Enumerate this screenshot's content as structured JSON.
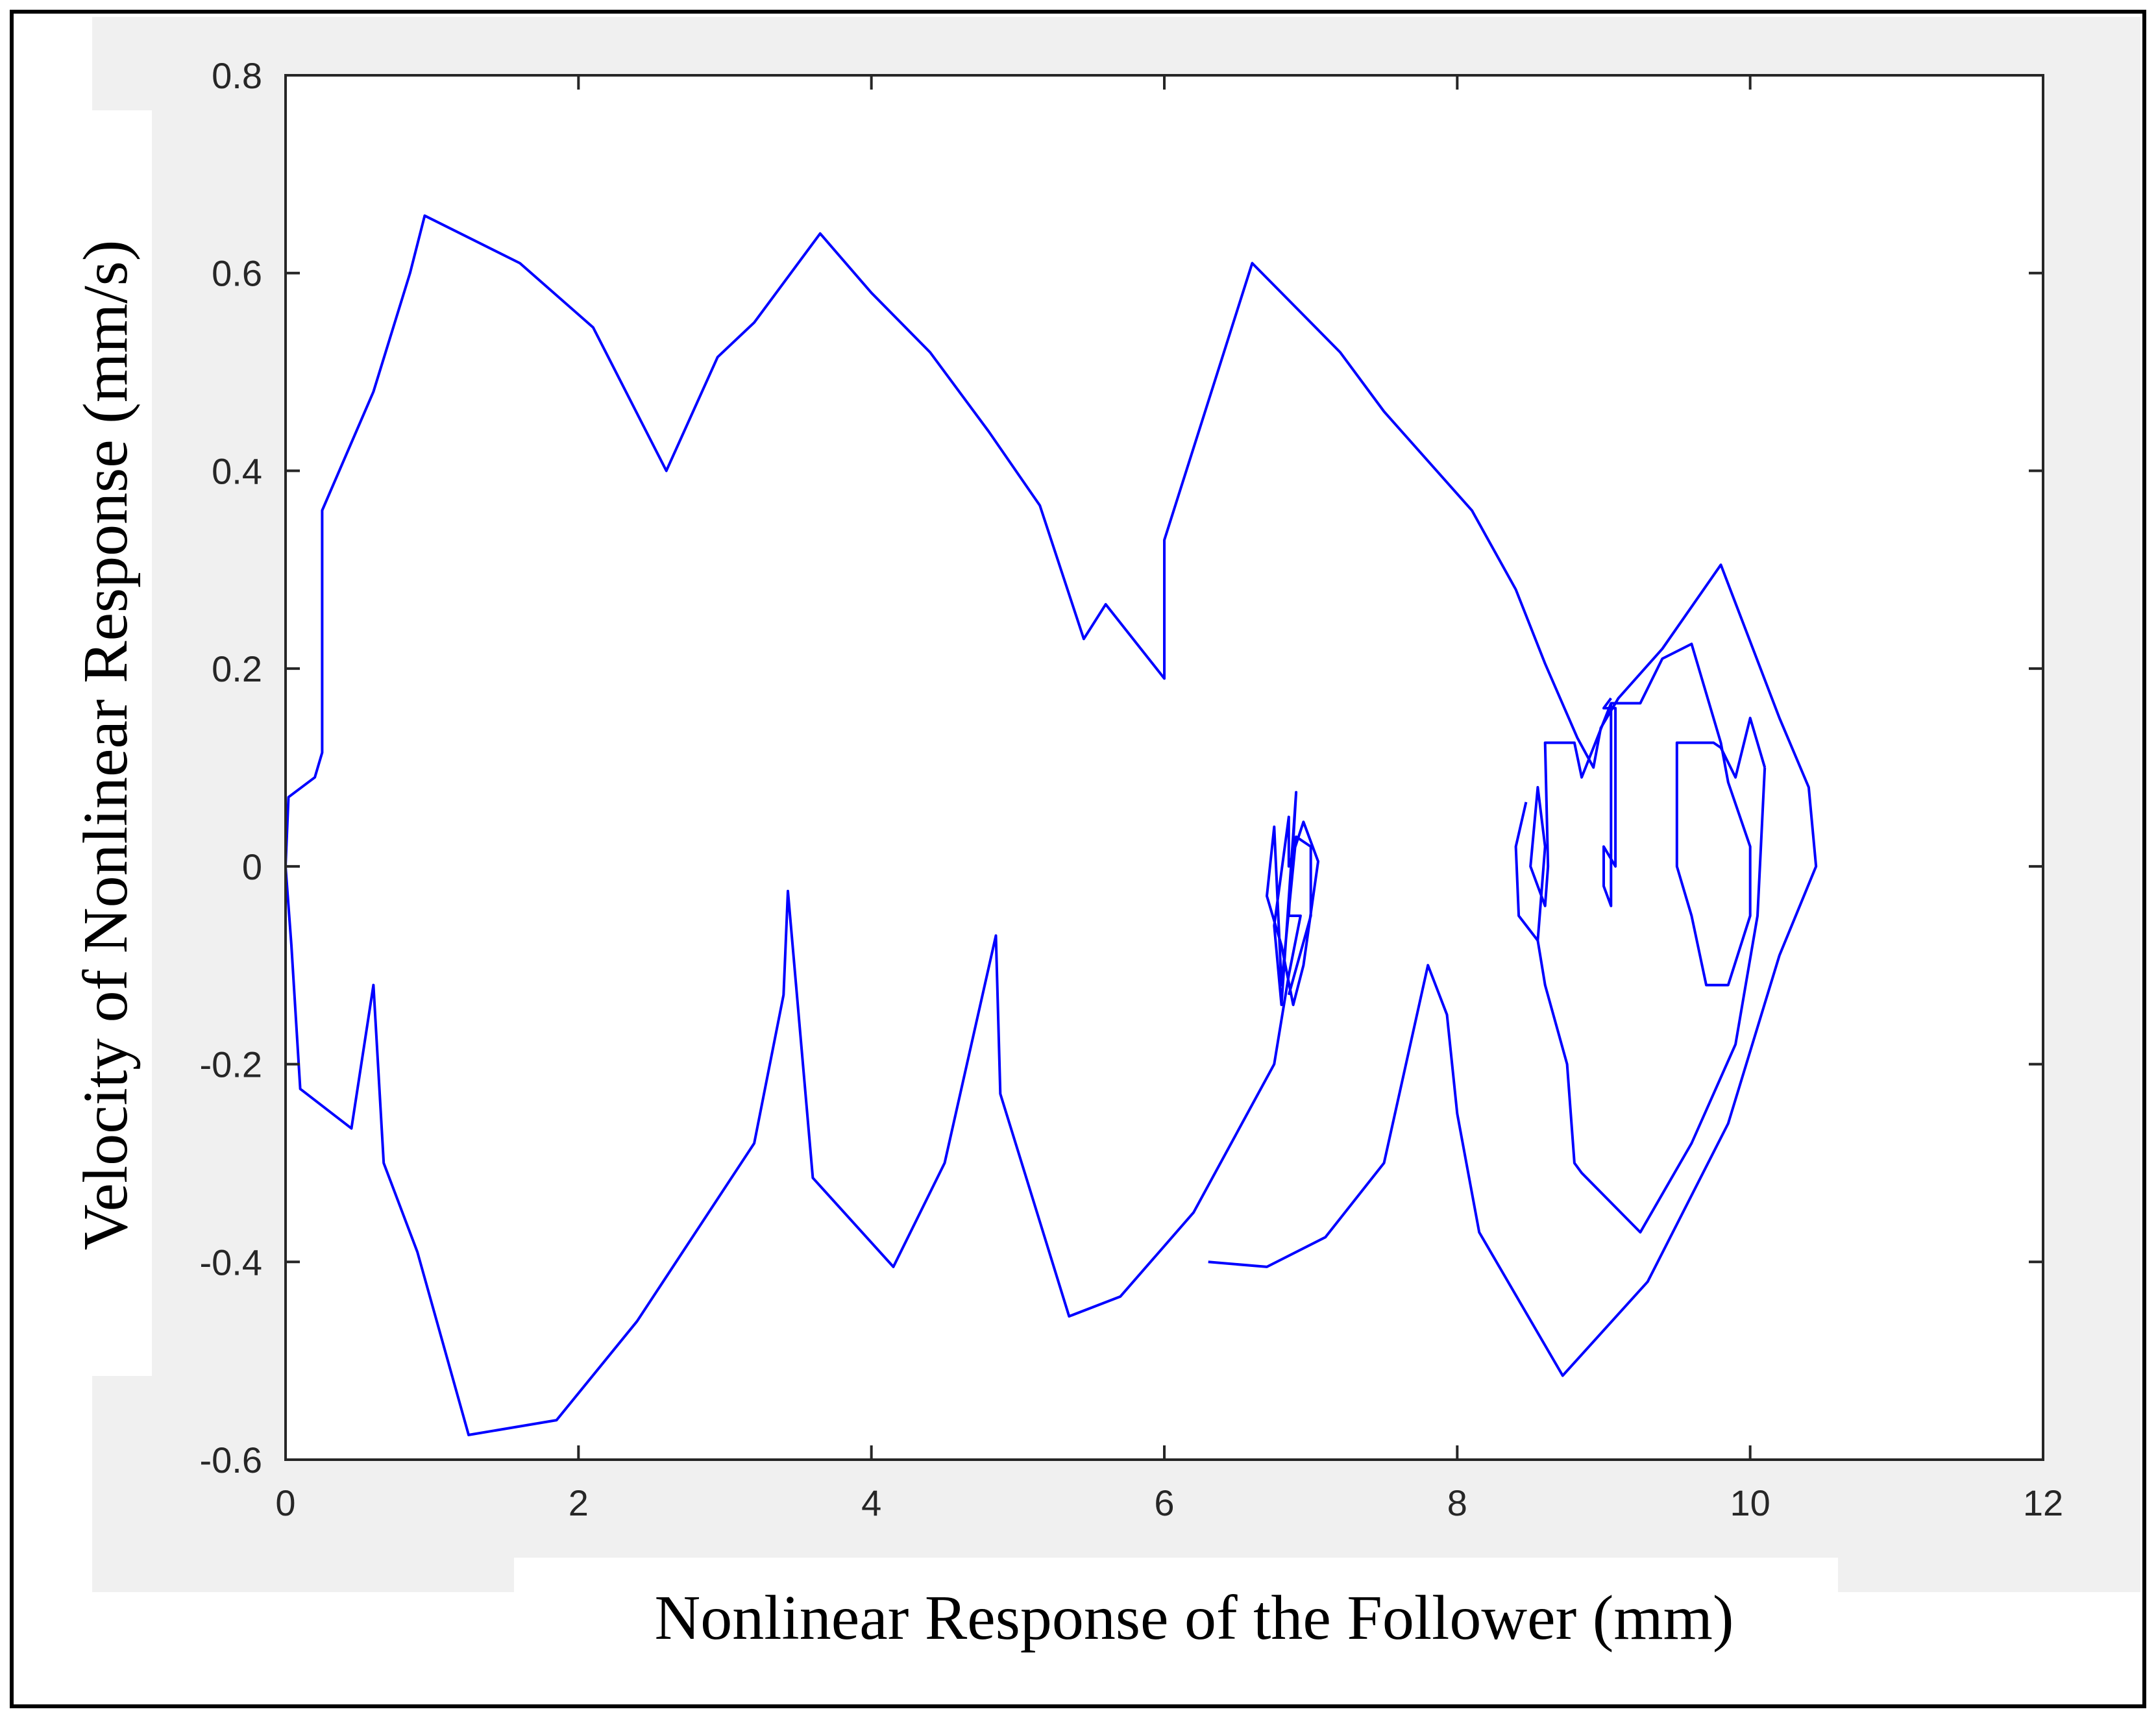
{
  "chart_data": {
    "type": "line",
    "title": "",
    "xlabel": "Nonlinear Response of the Follower (mm)",
    "ylabel": "Velocity of Nonlinear Response (mm/s)",
    "xlim": [
      0,
      12
    ],
    "ylim": [
      -0.6,
      0.8
    ],
    "x_ticks": [
      0,
      2,
      4,
      6,
      8,
      10,
      12
    ],
    "y_ticks": [
      -0.6,
      -0.4,
      -0.2,
      0,
      0.2,
      0.4,
      0.6,
      0.8
    ],
    "x_tick_labels": [
      "0",
      "2",
      "4",
      "6",
      "8",
      "10",
      "12"
    ],
    "y_tick_labels": [
      "-0.6",
      "-0.4",
      "-0.2",
      "0",
      "0.2",
      "0.4",
      "0.6",
      "0.8"
    ],
    "grid": false,
    "legend": "none",
    "series": [
      {
        "color": "#0000ff",
        "points": [
          [
            6.3,
            -0.4
          ],
          [
            6.7,
            -0.405
          ],
          [
            7.1,
            -0.375
          ],
          [
            7.5,
            -0.3
          ],
          [
            7.8,
            -0.1
          ],
          [
            7.93,
            -0.15
          ],
          [
            8.0,
            -0.25
          ],
          [
            8.15,
            -0.37
          ],
          [
            8.72,
            -0.515
          ],
          [
            9.3,
            -0.42
          ],
          [
            9.85,
            -0.26
          ],
          [
            10.2,
            -0.09
          ],
          [
            10.45,
            0.0
          ],
          [
            10.4,
            0.08
          ],
          [
            10.2,
            0.15
          ],
          [
            9.8,
            0.305
          ],
          [
            9.4,
            0.22
          ],
          [
            9.1,
            0.17
          ],
          [
            8.98,
            0.14
          ],
          [
            8.93,
            0.1
          ],
          [
            8.82,
            0.13
          ],
          [
            8.6,
            0.205
          ],
          [
            8.4,
            0.28
          ],
          [
            8.1,
            0.36
          ],
          [
            7.5,
            0.46
          ],
          [
            7.2,
            0.52
          ],
          [
            6.6,
            0.61
          ],
          [
            6.0,
            0.33
          ],
          [
            6.0,
            0.19
          ],
          [
            5.6,
            0.265
          ],
          [
            5.45,
            0.23
          ],
          [
            5.15,
            0.365
          ],
          [
            4.8,
            0.44
          ],
          [
            4.4,
            0.52
          ],
          [
            4.0,
            0.58
          ],
          [
            3.65,
            0.64
          ],
          [
            3.2,
            0.55
          ],
          [
            2.95,
            0.515
          ],
          [
            2.6,
            0.4
          ],
          [
            2.1,
            0.545
          ],
          [
            1.6,
            0.61
          ],
          [
            0.95,
            0.658
          ],
          [
            0.85,
            0.6
          ],
          [
            0.6,
            0.48
          ],
          [
            0.25,
            0.36
          ],
          [
            0.25,
            0.115
          ],
          [
            0.2,
            0.09
          ],
          [
            0.02,
            0.07
          ],
          [
            0.0,
            0.0
          ],
          [
            0.04,
            -0.08
          ],
          [
            0.1,
            -0.225
          ],
          [
            0.45,
            -0.265
          ],
          [
            0.6,
            -0.12
          ],
          [
            0.67,
            -0.3
          ],
          [
            0.9,
            -0.39
          ],
          [
            1.25,
            -0.575
          ],
          [
            1.85,
            -0.56
          ],
          [
            2.4,
            -0.46
          ],
          [
            3.2,
            -0.28
          ],
          [
            3.4,
            -0.13
          ],
          [
            3.43,
            -0.025
          ],
          [
            3.6,
            -0.315
          ],
          [
            4.15,
            -0.405
          ],
          [
            4.5,
            -0.3
          ],
          [
            4.85,
            -0.07
          ],
          [
            4.88,
            -0.23
          ],
          [
            5.35,
            -0.455
          ],
          [
            5.7,
            -0.435
          ],
          [
            6.2,
            -0.35
          ],
          [
            6.75,
            -0.2
          ],
          [
            6.85,
            -0.11
          ],
          [
            6.93,
            -0.05
          ],
          [
            6.85,
            -0.05
          ],
          [
            6.9,
            0.075
          ],
          [
            6.8,
            -0.14
          ],
          [
            6.75,
            -0.06
          ],
          [
            6.85,
            0.05
          ],
          [
            6.85,
            0.0
          ],
          [
            6.95,
            0.045
          ],
          [
            7.05,
            0.005
          ],
          [
            6.95,
            -0.1
          ],
          [
            6.88,
            -0.14
          ],
          [
            6.8,
            -0.08
          ],
          [
            6.7,
            -0.03
          ],
          [
            6.75,
            0.04
          ],
          [
            6.8,
            -0.12
          ],
          [
            6.9,
            0.03
          ],
          [
            7.0,
            0.02
          ],
          [
            7.0,
            -0.05
          ],
          [
            6.85,
            -0.13
          ]
        ]
      },
      {
        "color": "#0000ff",
        "points": [
          [
            8.47,
            0.065
          ],
          [
            8.4,
            0.02
          ],
          [
            8.42,
            -0.05
          ],
          [
            8.55,
            -0.075
          ],
          [
            8.6,
            0.02
          ],
          [
            8.55,
            0.08
          ],
          [
            8.5,
            0.0
          ],
          [
            8.6,
            -0.04
          ],
          [
            8.62,
            0.0
          ],
          [
            8.6,
            0.125
          ],
          [
            8.8,
            0.125
          ],
          [
            8.85,
            0.09
          ],
          [
            9.05,
            0.165
          ],
          [
            9.25,
            0.165
          ],
          [
            9.4,
            0.21
          ],
          [
            9.6,
            0.225
          ],
          [
            9.8,
            0.125
          ],
          [
            9.85,
            0.085
          ],
          [
            10.0,
            0.02
          ],
          [
            10.0,
            -0.05
          ],
          [
            9.85,
            -0.12
          ],
          [
            9.7,
            -0.12
          ],
          [
            9.6,
            -0.05
          ],
          [
            9.5,
            0.0
          ],
          [
            9.5,
            0.125
          ],
          [
            9.75,
            0.125
          ],
          [
            9.8,
            0.12
          ],
          [
            9.9,
            0.09
          ],
          [
            10.0,
            0.15
          ],
          [
            10.1,
            0.1
          ]
        ]
      },
      {
        "color": "#0000ff",
        "points": [
          [
            8.55,
            -0.075
          ],
          [
            8.6,
            -0.12
          ],
          [
            8.75,
            -0.2
          ],
          [
            8.8,
            -0.3
          ],
          [
            8.85,
            -0.31
          ],
          [
            9.25,
            -0.37
          ],
          [
            9.6,
            -0.28
          ],
          [
            9.9,
            -0.18
          ],
          [
            10.05,
            -0.05
          ],
          [
            10.1,
            0.1
          ]
        ]
      },
      {
        "color": "#0000ff",
        "points": [
          [
            9.05,
            0.165
          ],
          [
            9.05,
            -0.04
          ],
          [
            9.0,
            -0.02
          ],
          [
            9.0,
            0.02
          ],
          [
            9.08,
            0.0
          ],
          [
            9.08,
            0.16
          ],
          [
            9.0,
            0.16
          ],
          [
            9.05,
            0.17
          ]
        ]
      }
    ]
  }
}
